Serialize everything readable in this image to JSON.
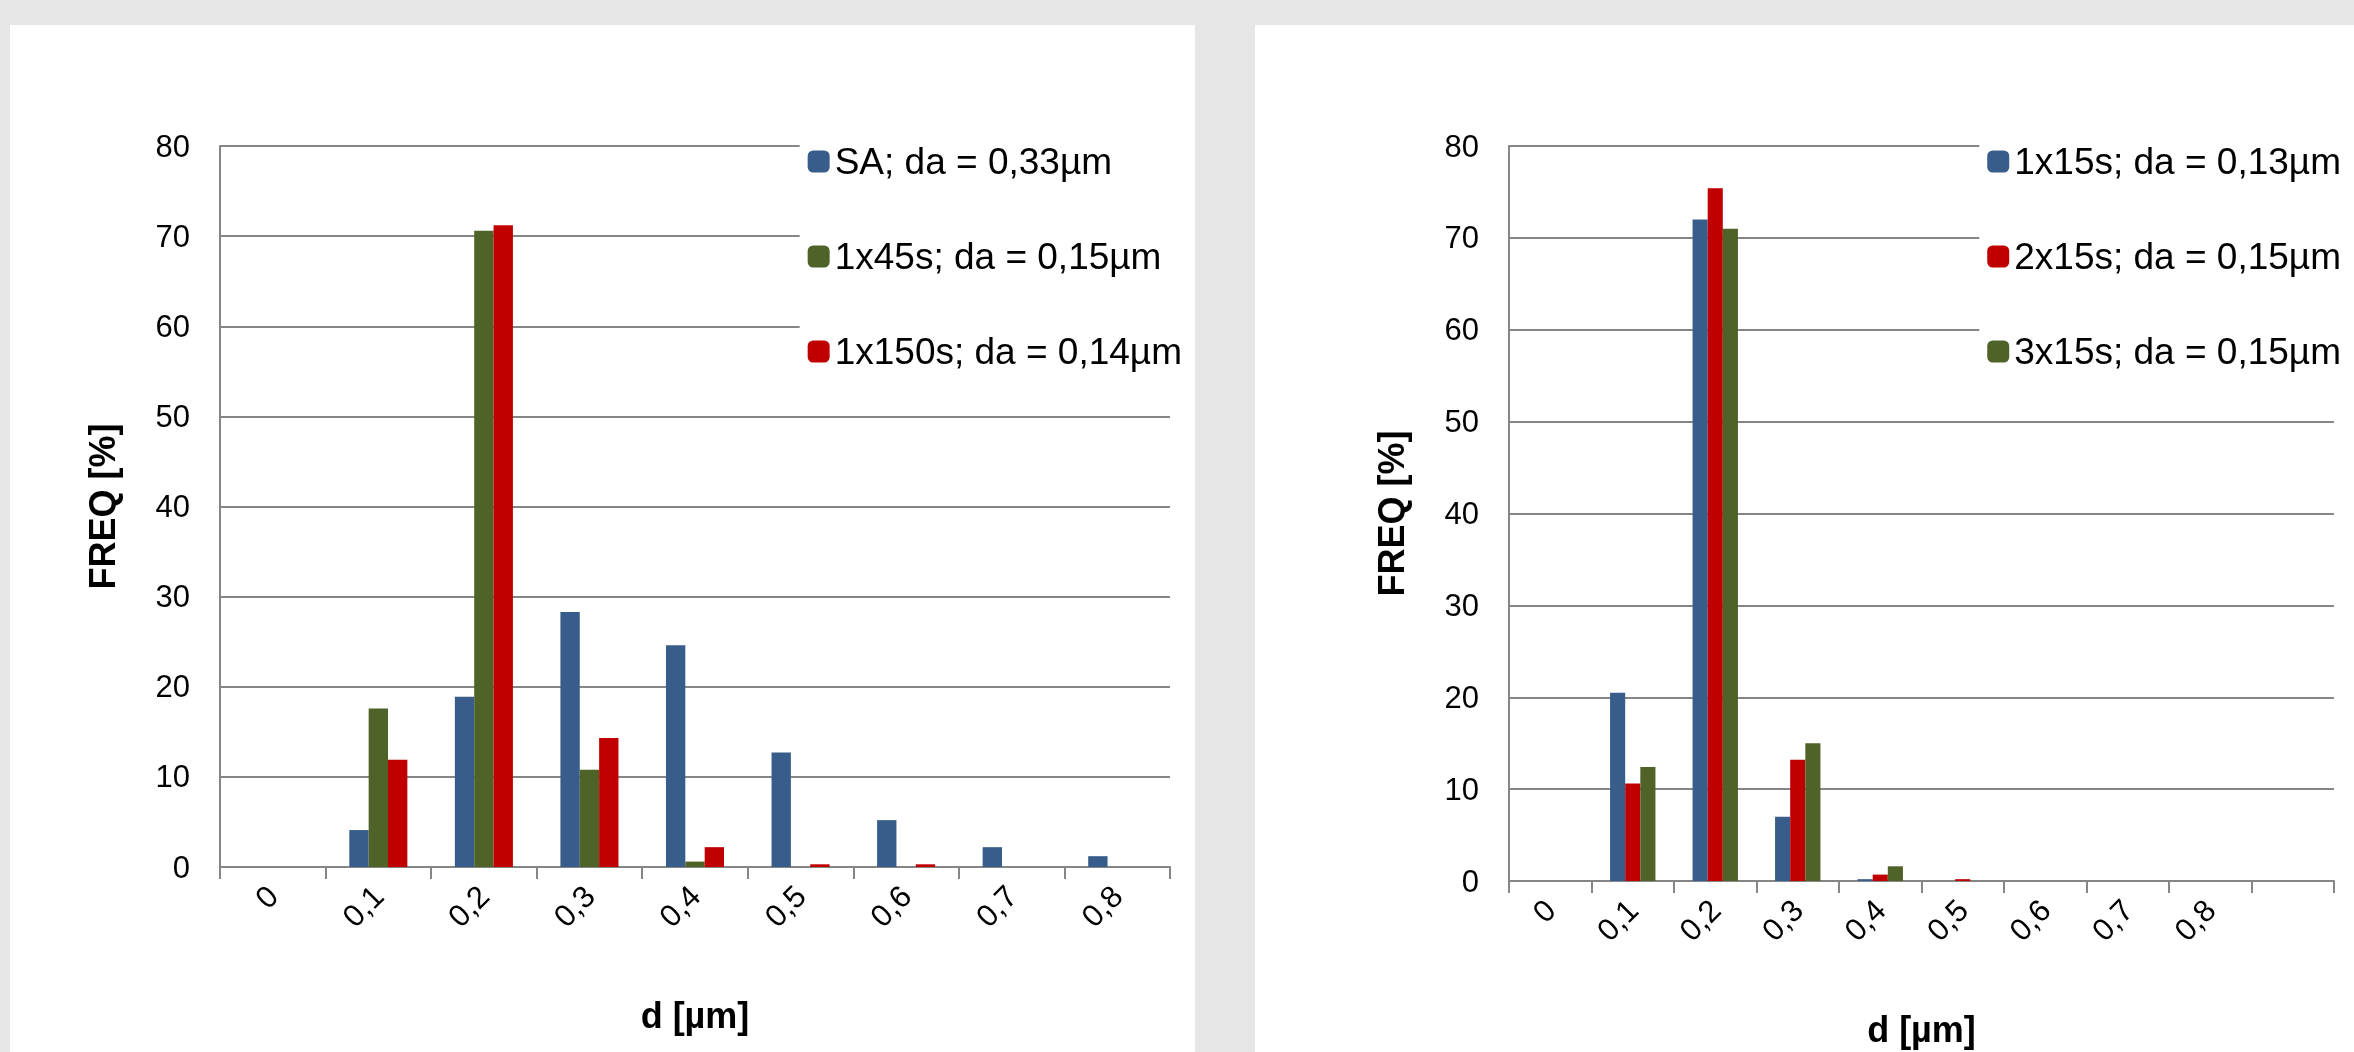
{
  "chart_data": [
    {
      "type": "bar",
      "xlabel": "d [µm]",
      "ylabel": "FREQ [%]",
      "categories": [
        "0",
        "0,1",
        "0,2",
        "0,3",
        "0,4",
        "0,5",
        "0,6",
        "0,7",
        "0,8"
      ],
      "ylim": [
        0,
        80
      ],
      "yticks": [
        0,
        10,
        20,
        30,
        40,
        50,
        60,
        70,
        80
      ],
      "grid": "y",
      "legend": "top right",
      "series": [
        {
          "name": "SA; da = 0,33µm",
          "color": "#385d8a",
          "values": [
            0,
            4.1,
            18.9,
            28.3,
            24.6,
            12.7,
            5.2,
            2.2,
            1.2
          ]
        },
        {
          "name": "1x45s; da = 0,15µm",
          "color": "#4f6228",
          "values": [
            0,
            17.6,
            70.6,
            10.8,
            0.6,
            0,
            0,
            0,
            0
          ]
        },
        {
          "name": "1x150s; da = 0,14µm",
          "color": "#c00000",
          "values": [
            0,
            11.9,
            71.2,
            14.3,
            2.2,
            0.3,
            0.3,
            0,
            0
          ]
        }
      ]
    },
    {
      "type": "bar",
      "xlabel": "d [µm]",
      "ylabel": "FREQ [%]",
      "categories": [
        "0",
        "0,1",
        "0,2",
        "0,3",
        "0,4",
        "0,5",
        "0,6",
        "0,7",
        "0,8",
        null
      ],
      "ylim": [
        0,
        80
      ],
      "yticks": [
        0,
        10,
        20,
        30,
        40,
        50,
        60,
        70,
        80
      ],
      "grid": "y",
      "legend": "top right",
      "series": [
        {
          "name": "1x15s; da = 0,13µm",
          "color": "#385d8a",
          "values": [
            0,
            20.5,
            72.0,
            7.0,
            0.2,
            0,
            0,
            0,
            0,
            0
          ]
        },
        {
          "name": "2x15s; da = 0,15µm",
          "color": "#c00000",
          "values": [
            0,
            10.6,
            75.4,
            13.2,
            0.7,
            0.2,
            0,
            0,
            0,
            0
          ]
        },
        {
          "name": "3x15s; da = 0,15µm",
          "color": "#4f6228",
          "values": [
            0,
            12.4,
            71.0,
            15.0,
            1.6,
            0,
            0,
            0,
            0,
            0
          ]
        }
      ]
    }
  ]
}
